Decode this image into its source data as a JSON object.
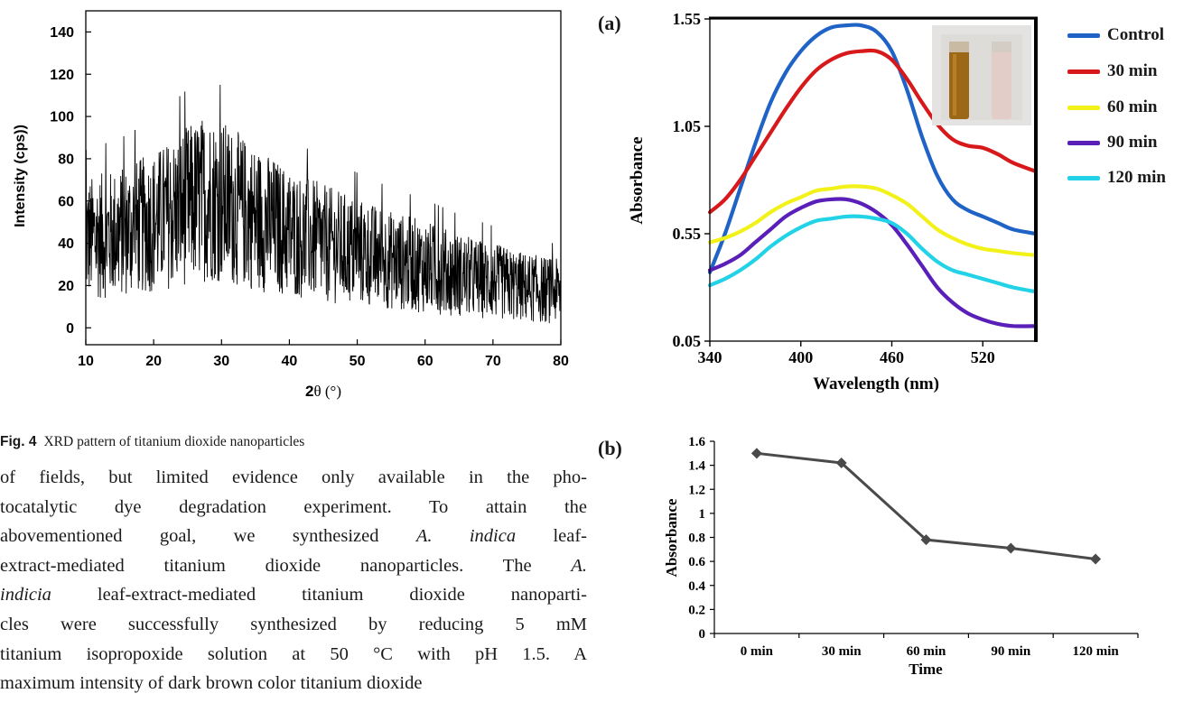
{
  "fig4": {
    "caption_label": "Fig. 4",
    "caption_text": "XRD pattern of titanium dioxide nanoparticles",
    "chart_data": {
      "type": "line",
      "title": "",
      "xlabel_bold": "2",
      "xlabel_theta": "θ (°)",
      "ylabel": "Intensity (cps))",
      "xlim": [
        10,
        80
      ],
      "ylim": [
        -8,
        150
      ],
      "xticks": [
        "10",
        "20",
        "30",
        "40",
        "50",
        "60",
        "70",
        "80"
      ],
      "yticks": [
        "0",
        "20",
        "40",
        "60",
        "80",
        "100",
        "120",
        "140"
      ],
      "grid": false,
      "profile_x": [
        10,
        15,
        20,
        25,
        28,
        30,
        35,
        40,
        45,
        50,
        55,
        60,
        65,
        70,
        75,
        80
      ],
      "profile_mean": [
        42,
        45,
        50,
        58,
        62,
        60,
        52,
        45,
        40,
        36,
        32,
        29,
        25,
        22,
        19,
        17
      ],
      "max_peak": {
        "x": 29.8,
        "y": 115
      }
    }
  },
  "fig_a": {
    "label": "(a)",
    "chart_data": {
      "type": "line",
      "xlabel": "Wavelength (nm)",
      "ylabel": "Absorbance",
      "xlim": [
        340,
        555
      ],
      "ylim": [
        0.05,
        1.55
      ],
      "xticks": [
        "340",
        "400",
        "460",
        "520"
      ],
      "yticks": [
        "0.05",
        "0.55",
        "1.05",
        "1.55"
      ],
      "legend_position": "right",
      "x": [
        340,
        350,
        360,
        370,
        380,
        390,
        400,
        410,
        420,
        430,
        440,
        450,
        460,
        470,
        480,
        490,
        500,
        510,
        520,
        530,
        540,
        555
      ],
      "series": [
        {
          "name": "Control",
          "color": "#1f63c6",
          "values": [
            0.37,
            0.55,
            0.76,
            0.97,
            1.16,
            1.3,
            1.4,
            1.47,
            1.51,
            1.52,
            1.52,
            1.49,
            1.4,
            1.22,
            1.0,
            0.82,
            0.71,
            0.66,
            0.63,
            0.6,
            0.57,
            0.55
          ]
        },
        {
          "name": "30 min",
          "color": "#d7191c",
          "values": [
            0.65,
            0.71,
            0.8,
            0.91,
            1.02,
            1.13,
            1.23,
            1.31,
            1.36,
            1.39,
            1.4,
            1.4,
            1.36,
            1.27,
            1.16,
            1.06,
            0.99,
            0.96,
            0.95,
            0.92,
            0.88,
            0.84
          ]
        },
        {
          "name": "60 min",
          "color": "#f2f21a",
          "values": [
            0.51,
            0.53,
            0.56,
            0.6,
            0.65,
            0.69,
            0.72,
            0.75,
            0.76,
            0.77,
            0.77,
            0.76,
            0.73,
            0.69,
            0.63,
            0.57,
            0.53,
            0.5,
            0.48,
            0.47,
            0.46,
            0.45
          ]
        },
        {
          "name": "90 min",
          "color": "#5a1fb8",
          "values": [
            0.38,
            0.41,
            0.45,
            0.51,
            0.57,
            0.63,
            0.67,
            0.7,
            0.71,
            0.71,
            0.69,
            0.65,
            0.59,
            0.5,
            0.4,
            0.3,
            0.23,
            0.18,
            0.15,
            0.13,
            0.12,
            0.12
          ]
        },
        {
          "name": "120 min",
          "color": "#22d3e8",
          "values": [
            0.31,
            0.34,
            0.38,
            0.43,
            0.49,
            0.54,
            0.58,
            0.61,
            0.62,
            0.63,
            0.63,
            0.62,
            0.6,
            0.55,
            0.48,
            0.42,
            0.38,
            0.36,
            0.34,
            0.32,
            0.3,
            0.28
          ]
        }
      ]
    }
  },
  "fig_b": {
    "label": "(b)",
    "chart_data": {
      "type": "line",
      "xlabel": "Time",
      "ylabel": "Absorbance",
      "categories": [
        "0 min",
        "30 min",
        "60 min",
        "90 min",
        "120 min"
      ],
      "values": [
        1.5,
        1.42,
        0.78,
        0.71,
        0.62
      ],
      "ylim": [
        0,
        1.6
      ],
      "yticks": [
        "0",
        "0.2",
        "0.4",
        "0.6",
        "0.8",
        "1",
        "1.2",
        "1.4",
        "1.6"
      ],
      "color": "#4a4a4a"
    }
  },
  "body_text": {
    "line1": "of fields, but limited evidence only available in the pho-",
    "line2": "tocatalytic dye degradation experiment. To attain the",
    "line3a": "abovementioned goal, we synthesized ",
    "line3b": "A. indica",
    "line3c": " leaf-",
    "line4a": "extract-mediated titanium dioxide nanoparticles. The ",
    "line4b": "A.",
    "line5a": "indicia",
    "line5b": " leaf-extract-mediated titanium dioxide nanoparti-",
    "line6": "cles were successfully synthesized by reducing 5 mM",
    "line7": "titanium isopropoxide solution at 50 °C with pH 1.5. A",
    "line8": "maximum intensity of dark brown color titanium dioxide"
  }
}
